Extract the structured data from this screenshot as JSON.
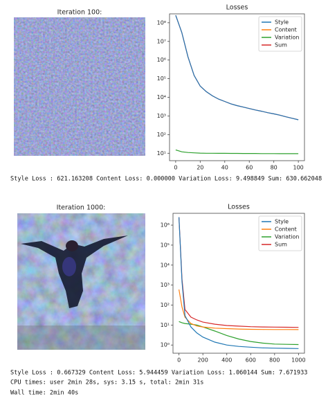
{
  "image_titles": [
    "Iteration 100:",
    "Iteration 1000:"
  ],
  "chart_data": [
    {
      "type": "line",
      "title": "Losses",
      "log_y": true,
      "legend": "upper right",
      "x": [
        0,
        5,
        10,
        15,
        20,
        25,
        30,
        35,
        40,
        45,
        50,
        55,
        60,
        65,
        70,
        75,
        80,
        85,
        90,
        95,
        100
      ],
      "series": [
        {
          "name": "Style",
          "color": "#1f77b4",
          "values": [
            250000000,
            30000000,
            1500000,
            150000,
            40000,
            20000,
            12000,
            8000,
            6000,
            4500,
            3600,
            3000,
            2500,
            2100,
            1800,
            1500,
            1300,
            1100,
            900,
            750,
            621
          ]
        },
        {
          "name": "Content",
          "color": "#ff7f0e",
          "values": [
            null,
            null,
            null,
            null,
            null,
            null,
            null,
            null,
            null,
            null,
            null,
            null,
            null,
            null,
            null,
            null,
            null,
            null,
            null,
            null,
            null
          ]
        },
        {
          "name": "Variation",
          "color": "#2ca02c",
          "values": [
            15,
            12,
            11,
            10.5,
            10.2,
            10,
            10,
            9.9,
            9.9,
            9.8,
            9.8,
            9.7,
            9.7,
            9.7,
            9.6,
            9.6,
            9.6,
            9.5,
            9.5,
            9.5,
            9.5
          ]
        },
        {
          "name": "Sum",
          "color": "#d62728",
          "values": [
            250000000,
            30000000,
            1500000,
            150000,
            40000,
            20000,
            12000,
            8000,
            6000,
            4500,
            3600,
            3000,
            2500,
            2100,
            1800,
            1500,
            1300,
            1100,
            900,
            750,
            630
          ]
        }
      ],
      "xlim": [
        -5,
        105
      ],
      "xticks": [
        0,
        20,
        40,
        60,
        80,
        100
      ],
      "ylim": [
        4,
        300000000
      ],
      "yticks": [
        {
          "value": 10,
          "label": "10¹"
        },
        {
          "value": 100,
          "label": "10²"
        },
        {
          "value": 1000,
          "label": "10³"
        },
        {
          "value": 10000,
          "label": "10⁴"
        },
        {
          "value": 100000,
          "label": "10⁵"
        },
        {
          "value": 1000000,
          "label": "10⁶"
        },
        {
          "value": 10000000,
          "label": "10⁷"
        },
        {
          "value": 100000000,
          "label": "10⁸"
        }
      ]
    },
    {
      "type": "line",
      "title": "Losses",
      "log_y": true,
      "legend": "upper right",
      "x": [
        0,
        25,
        50,
        100,
        150,
        200,
        300,
        400,
        500,
        600,
        700,
        800,
        900,
        1000
      ],
      "series": [
        {
          "name": "Style",
          "color": "#1f77b4",
          "values": [
            2500000,
            1500,
            30,
            8,
            4,
            2.5,
            1.4,
            1.0,
            0.85,
            0.78,
            0.72,
            0.7,
            0.68,
            0.667
          ]
        },
        {
          "name": "Content",
          "color": "#ff7f0e",
          "values": [
            600,
            80,
            25,
            12,
            9,
            8,
            7,
            6.6,
            6.3,
            6.1,
            6.0,
            5.97,
            5.95,
            5.94
          ]
        },
        {
          "name": "Variation",
          "color": "#2ca02c",
          "values": [
            15,
            13,
            12,
            11,
            10,
            8,
            5,
            3,
            2,
            1.5,
            1.25,
            1.12,
            1.08,
            1.06
          ]
        },
        {
          "name": "Sum",
          "color": "#d62728",
          "values": [
            2500000,
            2000,
            60,
            25,
            18,
            14,
            11,
            9.5,
            8.8,
            8.3,
            8,
            7.9,
            7.8,
            7.67
          ]
        }
      ],
      "xlim": [
        -50,
        1050
      ],
      "xticks": [
        0,
        200,
        400,
        600,
        800,
        1000
      ],
      "ylim": [
        0.39,
        3900000
      ],
      "yticks": [
        {
          "value": 1,
          "label": "10⁰"
        },
        {
          "value": 10,
          "label": "10¹"
        },
        {
          "value": 100,
          "label": "10²"
        },
        {
          "value": 1000,
          "label": "10³"
        },
        {
          "value": 10000,
          "label": "10⁴"
        },
        {
          "value": 100000,
          "label": "10⁵"
        },
        {
          "value": 1000000,
          "label": "10⁶"
        }
      ]
    }
  ],
  "outputs": [
    "Style Loss : 621.163208 Content Loss: 0.000000 Variation Loss: 9.498849 Sum: 630.662048",
    "Style Loss : 0.667329 Content Loss: 5.944459 Variation Loss: 1.060144 Sum: 7.671933",
    "CPU times: user 2min 28s, sys: 3.15 s, total: 2min 31s",
    "Wall time: 2min 40s"
  ]
}
